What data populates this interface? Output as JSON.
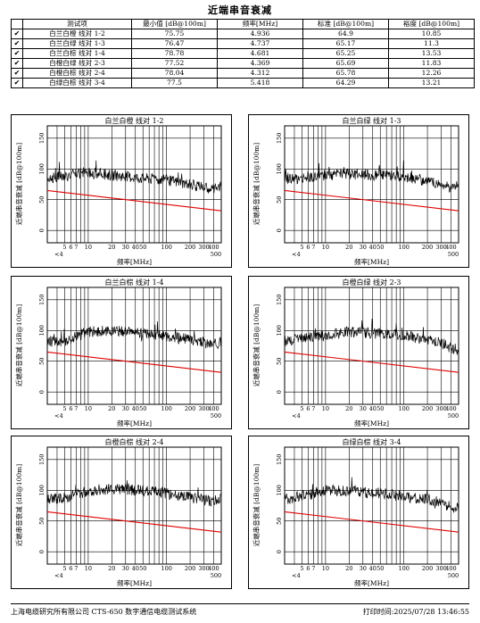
{
  "title": "近端串音衰减",
  "table": {
    "headers": [
      "测试项",
      "最小值 [dB@100m]",
      "频率[MHz]",
      "标准 [dB@100m]",
      "裕度 [dB@100m]"
    ],
    "check_glyph": "✔",
    "rows": [
      {
        "item": "白兰白橙 线对 1-2",
        "min": "75.75",
        "freq": "4.936",
        "std": "64.9",
        "margin": "10.85"
      },
      {
        "item": "白兰白绿 线对 1-3",
        "min": "76.47",
        "freq": "4.737",
        "std": "65.17",
        "margin": "11.3"
      },
      {
        "item": "白兰白棕 线对 1-4",
        "min": "78.78",
        "freq": "4.681",
        "std": "65.25",
        "margin": "13.53"
      },
      {
        "item": "白橙白绿 线对 2-3",
        "min": "77.52",
        "freq": "4.369",
        "std": "65.69",
        "margin": "11.83"
      },
      {
        "item": "白橙白棕 线对 2-4",
        "min": "78.04",
        "freq": "4.312",
        "std": "65.78",
        "margin": "12.26"
      },
      {
        "item": "白绿白棕 线对 3-4",
        "min": "77.5",
        "freq": "5.418",
        "std": "64.29",
        "margin": "13.21"
      }
    ]
  },
  "chart_data": [
    {
      "type": "line",
      "title": "白兰白橙 线对 1-2",
      "xlabel": "频率[MHz]",
      "ylabel": "近端串音衰减 [dB@100m]",
      "x_scale": "log",
      "xlim": [
        3,
        500
      ],
      "ylim": [
        -20,
        170
      ],
      "y_ticks": [
        "150",
        "100",
        "50",
        "0"
      ],
      "x_ticks": [
        "5",
        "6",
        "7",
        "10",
        "20",
        "30",
        "40",
        "50",
        "100",
        "200",
        "300",
        "400",
        "4",
        "500"
      ],
      "series": [
        {
          "color": "#000000",
          "x": [
            3,
            5,
            10,
            20,
            50,
            100,
            200,
            300,
            400,
            500
          ],
          "y": [
            85,
            88,
            95,
            90,
            85,
            82,
            75,
            70,
            68,
            72
          ]
        },
        {
          "color": "#e00000",
          "x": [
            3,
            500
          ],
          "y": [
            65,
            32
          ]
        }
      ]
    },
    {
      "type": "line",
      "title": "白兰白绿 线对 1-3",
      "xlabel": "频率[MHz]",
      "ylabel": "近端串音衰减 [dB@100m]",
      "x_scale": "log",
      "xlim": [
        3,
        500
      ],
      "ylim": [
        -20,
        170
      ],
      "y_ticks": [
        "150",
        "100",
        "50",
        "0"
      ],
      "x_ticks": [
        "5",
        "6",
        "7",
        "10",
        "20",
        "30",
        "40",
        "50",
        "100",
        "200",
        "300",
        "400",
        "4",
        "500"
      ],
      "series": [
        {
          "color": "#000000",
          "x": [
            3,
            5,
            10,
            20,
            50,
            100,
            200,
            300,
            400,
            500
          ],
          "y": [
            82,
            86,
            90,
            92,
            90,
            88,
            80,
            75,
            70,
            72
          ]
        },
        {
          "color": "#e00000",
          "x": [
            3,
            500
          ],
          "y": [
            65,
            32
          ]
        }
      ]
    },
    {
      "type": "line",
      "title": "白兰白棕 线对 1-4",
      "xlabel": "频率[MHz]",
      "ylabel": "近端串音衰减 [dB@100m]",
      "x_scale": "log",
      "xlim": [
        3,
        500
      ],
      "ylim": [
        -20,
        170
      ],
      "y_ticks": [
        "150",
        "100",
        "50",
        "0"
      ],
      "x_ticks": [
        "5",
        "6",
        "7",
        "10",
        "20",
        "30",
        "40",
        "50",
        "100",
        "200",
        "300",
        "400",
        "4",
        "500"
      ],
      "series": [
        {
          "color": "#000000",
          "x": [
            3,
            5,
            10,
            20,
            50,
            100,
            200,
            300,
            400,
            500
          ],
          "y": [
            82,
            83,
            98,
            100,
            95,
            90,
            85,
            80,
            78,
            80
          ]
        },
        {
          "color": "#e00000",
          "x": [
            3,
            500
          ],
          "y": [
            65,
            32
          ]
        }
      ]
    },
    {
      "type": "line",
      "title": "白橙白绿 线对 2-3",
      "xlabel": "频率[MHz]",
      "ylabel": "近端串音衰减 [dB@100m]",
      "x_scale": "log",
      "xlim": [
        3,
        500
      ],
      "ylim": [
        -20,
        170
      ],
      "y_ticks": [
        "150",
        "100",
        "50",
        "0"
      ],
      "x_ticks": [
        "5",
        "6",
        "7",
        "10",
        "20",
        "30",
        "40",
        "50",
        "100",
        "200",
        "300",
        "400",
        "4",
        "500"
      ],
      "series": [
        {
          "color": "#000000",
          "x": [
            3,
            5,
            10,
            20,
            50,
            100,
            200,
            300,
            400,
            500
          ],
          "y": [
            82,
            88,
            92,
            98,
            95,
            92,
            85,
            80,
            72,
            68
          ]
        },
        {
          "color": "#e00000",
          "x": [
            3,
            500
          ],
          "y": [
            65,
            32
          ]
        }
      ]
    },
    {
      "type": "line",
      "title": "白橙白棕 线对 2-4",
      "xlabel": "频率[MHz]",
      "ylabel": "近端串音衰减 [dB@100m]",
      "x_scale": "log",
      "xlim": [
        3,
        500
      ],
      "ylim": [
        -20,
        170
      ],
      "y_ticks": [
        "150",
        "100",
        "50",
        "0"
      ],
      "x_ticks": [
        "5",
        "6",
        "7",
        "10",
        "20",
        "30",
        "40",
        "50",
        "100",
        "200",
        "300",
        "400",
        "4",
        "500"
      ],
      "series": [
        {
          "color": "#000000",
          "x": [
            3,
            5,
            10,
            20,
            50,
            100,
            200,
            300,
            400,
            500
          ],
          "y": [
            85,
            88,
            98,
            102,
            100,
            95,
            88,
            84,
            82,
            86
          ]
        },
        {
          "color": "#e00000",
          "x": [
            3,
            500
          ],
          "y": [
            65,
            32
          ]
        }
      ]
    },
    {
      "type": "line",
      "title": "白绿白棕 线对 3-4",
      "xlabel": "频率[MHz]",
      "ylabel": "近端串音衰减 [dB@100m]",
      "x_scale": "log",
      "xlim": [
        3,
        500
      ],
      "ylim": [
        -20,
        170
      ],
      "y_ticks": [
        "150",
        "100",
        "50",
        "0"
      ],
      "x_ticks": [
        "5",
        "6",
        "7",
        "10",
        "20",
        "30",
        "40",
        "50",
        "100",
        "200",
        "300",
        "400",
        "4",
        "500"
      ],
      "series": [
        {
          "color": "#000000",
          "x": [
            3,
            5,
            10,
            20,
            50,
            100,
            200,
            300,
            400,
            500
          ],
          "y": [
            85,
            90,
            100,
            98,
            95,
            90,
            85,
            80,
            72,
            70
          ]
        },
        {
          "color": "#e00000",
          "x": [
            3,
            500
          ],
          "y": [
            65,
            32
          ]
        }
      ]
    }
  ],
  "footer": {
    "left": "上海电缆研究所有限公司 CTS-650 数字通信电缆测试系统",
    "right": "打印时间:2025/07/28 13:46:55"
  }
}
